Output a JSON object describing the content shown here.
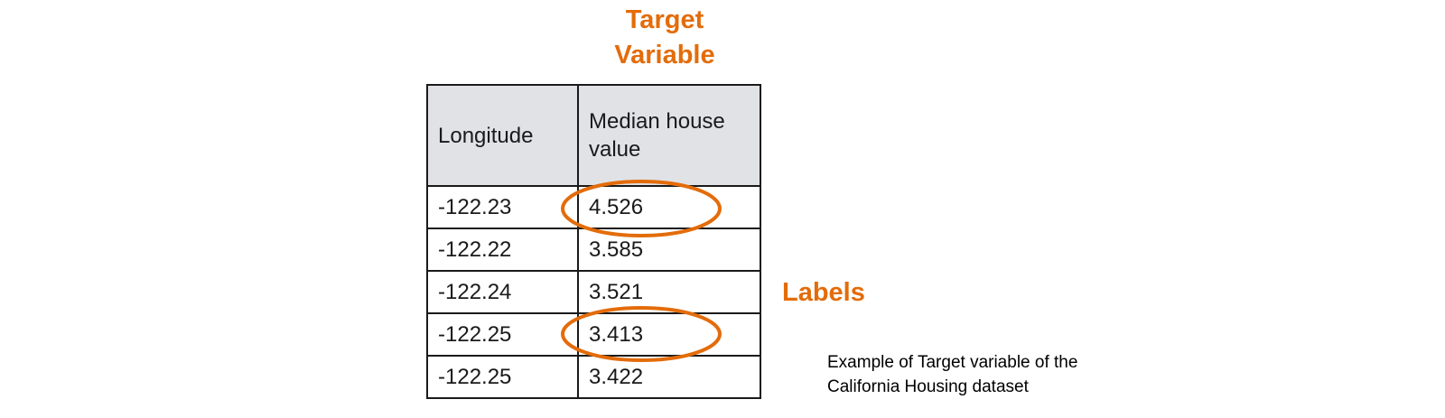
{
  "heading": {
    "line1": "Target",
    "line2": "Variable"
  },
  "table": {
    "headers": [
      "Longitude",
      "Median house value"
    ],
    "rows": [
      [
        "-122.23",
        "4.526"
      ],
      [
        "-122.22",
        "3.585"
      ],
      [
        "-122.24",
        "3.521"
      ],
      [
        "-122.25",
        "3.413"
      ],
      [
        "-122.25",
        "3.422"
      ]
    ]
  },
  "labels_text": "Labels",
  "caption": {
    "line1": "Example  of Target variable of the",
    "line2": "California  Housing dataset"
  },
  "colors": {
    "accent": "#E36C0A",
    "header_bg": "#E0E2E6"
  }
}
